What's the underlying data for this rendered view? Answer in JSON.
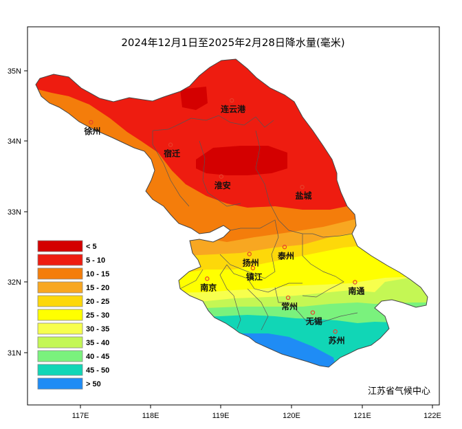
{
  "title": "2024年12月1日至2025年2月28日降水量(毫米)",
  "credit": "江苏省气候中心",
  "colors": {
    "lt5": "#d40000",
    "c5_10": "#ee1c10",
    "c10_15": "#f47d0b",
    "c15_20": "#f8a721",
    "c20_25": "#fdd80a",
    "c25_30": "#ffff00",
    "c30_35": "#f7ff4d",
    "c35_40": "#c4f754",
    "c40_45": "#7af27d",
    "c45_50": "#11d6b6",
    "gt50": "#1f8cf5"
  },
  "legend": [
    {
      "label": "< 5",
      "color": "#d40000"
    },
    {
      "label": "5 - 10",
      "color": "#ee1c10"
    },
    {
      "label": "10 - 15",
      "color": "#f47d0b"
    },
    {
      "label": "15 - 20",
      "color": "#f8a721"
    },
    {
      "label": "20 - 25",
      "color": "#fdd80a"
    },
    {
      "label": "25 - 30",
      "color": "#ffff00"
    },
    {
      "label": "30 - 35",
      "color": "#f7ff4d"
    },
    {
      "label": "35 - 40",
      "color": "#c4f754"
    },
    {
      "label": "40 - 45",
      "color": "#7af27d"
    },
    {
      "label": "45 - 50",
      "color": "#11d6b6"
    },
    {
      "label": "> 50",
      "color": "#1f8cf5"
    }
  ],
  "axes": {
    "x_ticks": [
      "117E",
      "118E",
      "119E",
      "120E",
      "121E",
      "122E"
    ],
    "y_ticks": [
      "35N",
      "34N",
      "33N",
      "32N",
      "31N"
    ]
  },
  "cities": [
    {
      "name": "连云港",
      "lon": 119.15,
      "lat": 34.58
    },
    {
      "name": "徐州",
      "lon": 117.15,
      "lat": 34.27
    },
    {
      "name": "宿迁",
      "lon": 118.28,
      "lat": 33.95
    },
    {
      "name": "淮安",
      "lon": 119.0,
      "lat": 33.5
    },
    {
      "name": "盐城",
      "lon": 120.15,
      "lat": 33.35
    },
    {
      "name": "扬州",
      "lon": 119.4,
      "lat": 32.4
    },
    {
      "name": "泰州",
      "lon": 119.9,
      "lat": 32.5
    },
    {
      "name": "镇江",
      "lon": 119.45,
      "lat": 32.2
    },
    {
      "name": "南京",
      "lon": 118.8,
      "lat": 32.05
    },
    {
      "name": "常州",
      "lon": 119.95,
      "lat": 31.78
    },
    {
      "name": "南通",
      "lon": 120.9,
      "lat": 32.0
    },
    {
      "name": "无锡",
      "lon": 120.3,
      "lat": 31.57
    },
    {
      "name": "苏州",
      "lon": 120.62,
      "lat": 31.3
    }
  ]
}
